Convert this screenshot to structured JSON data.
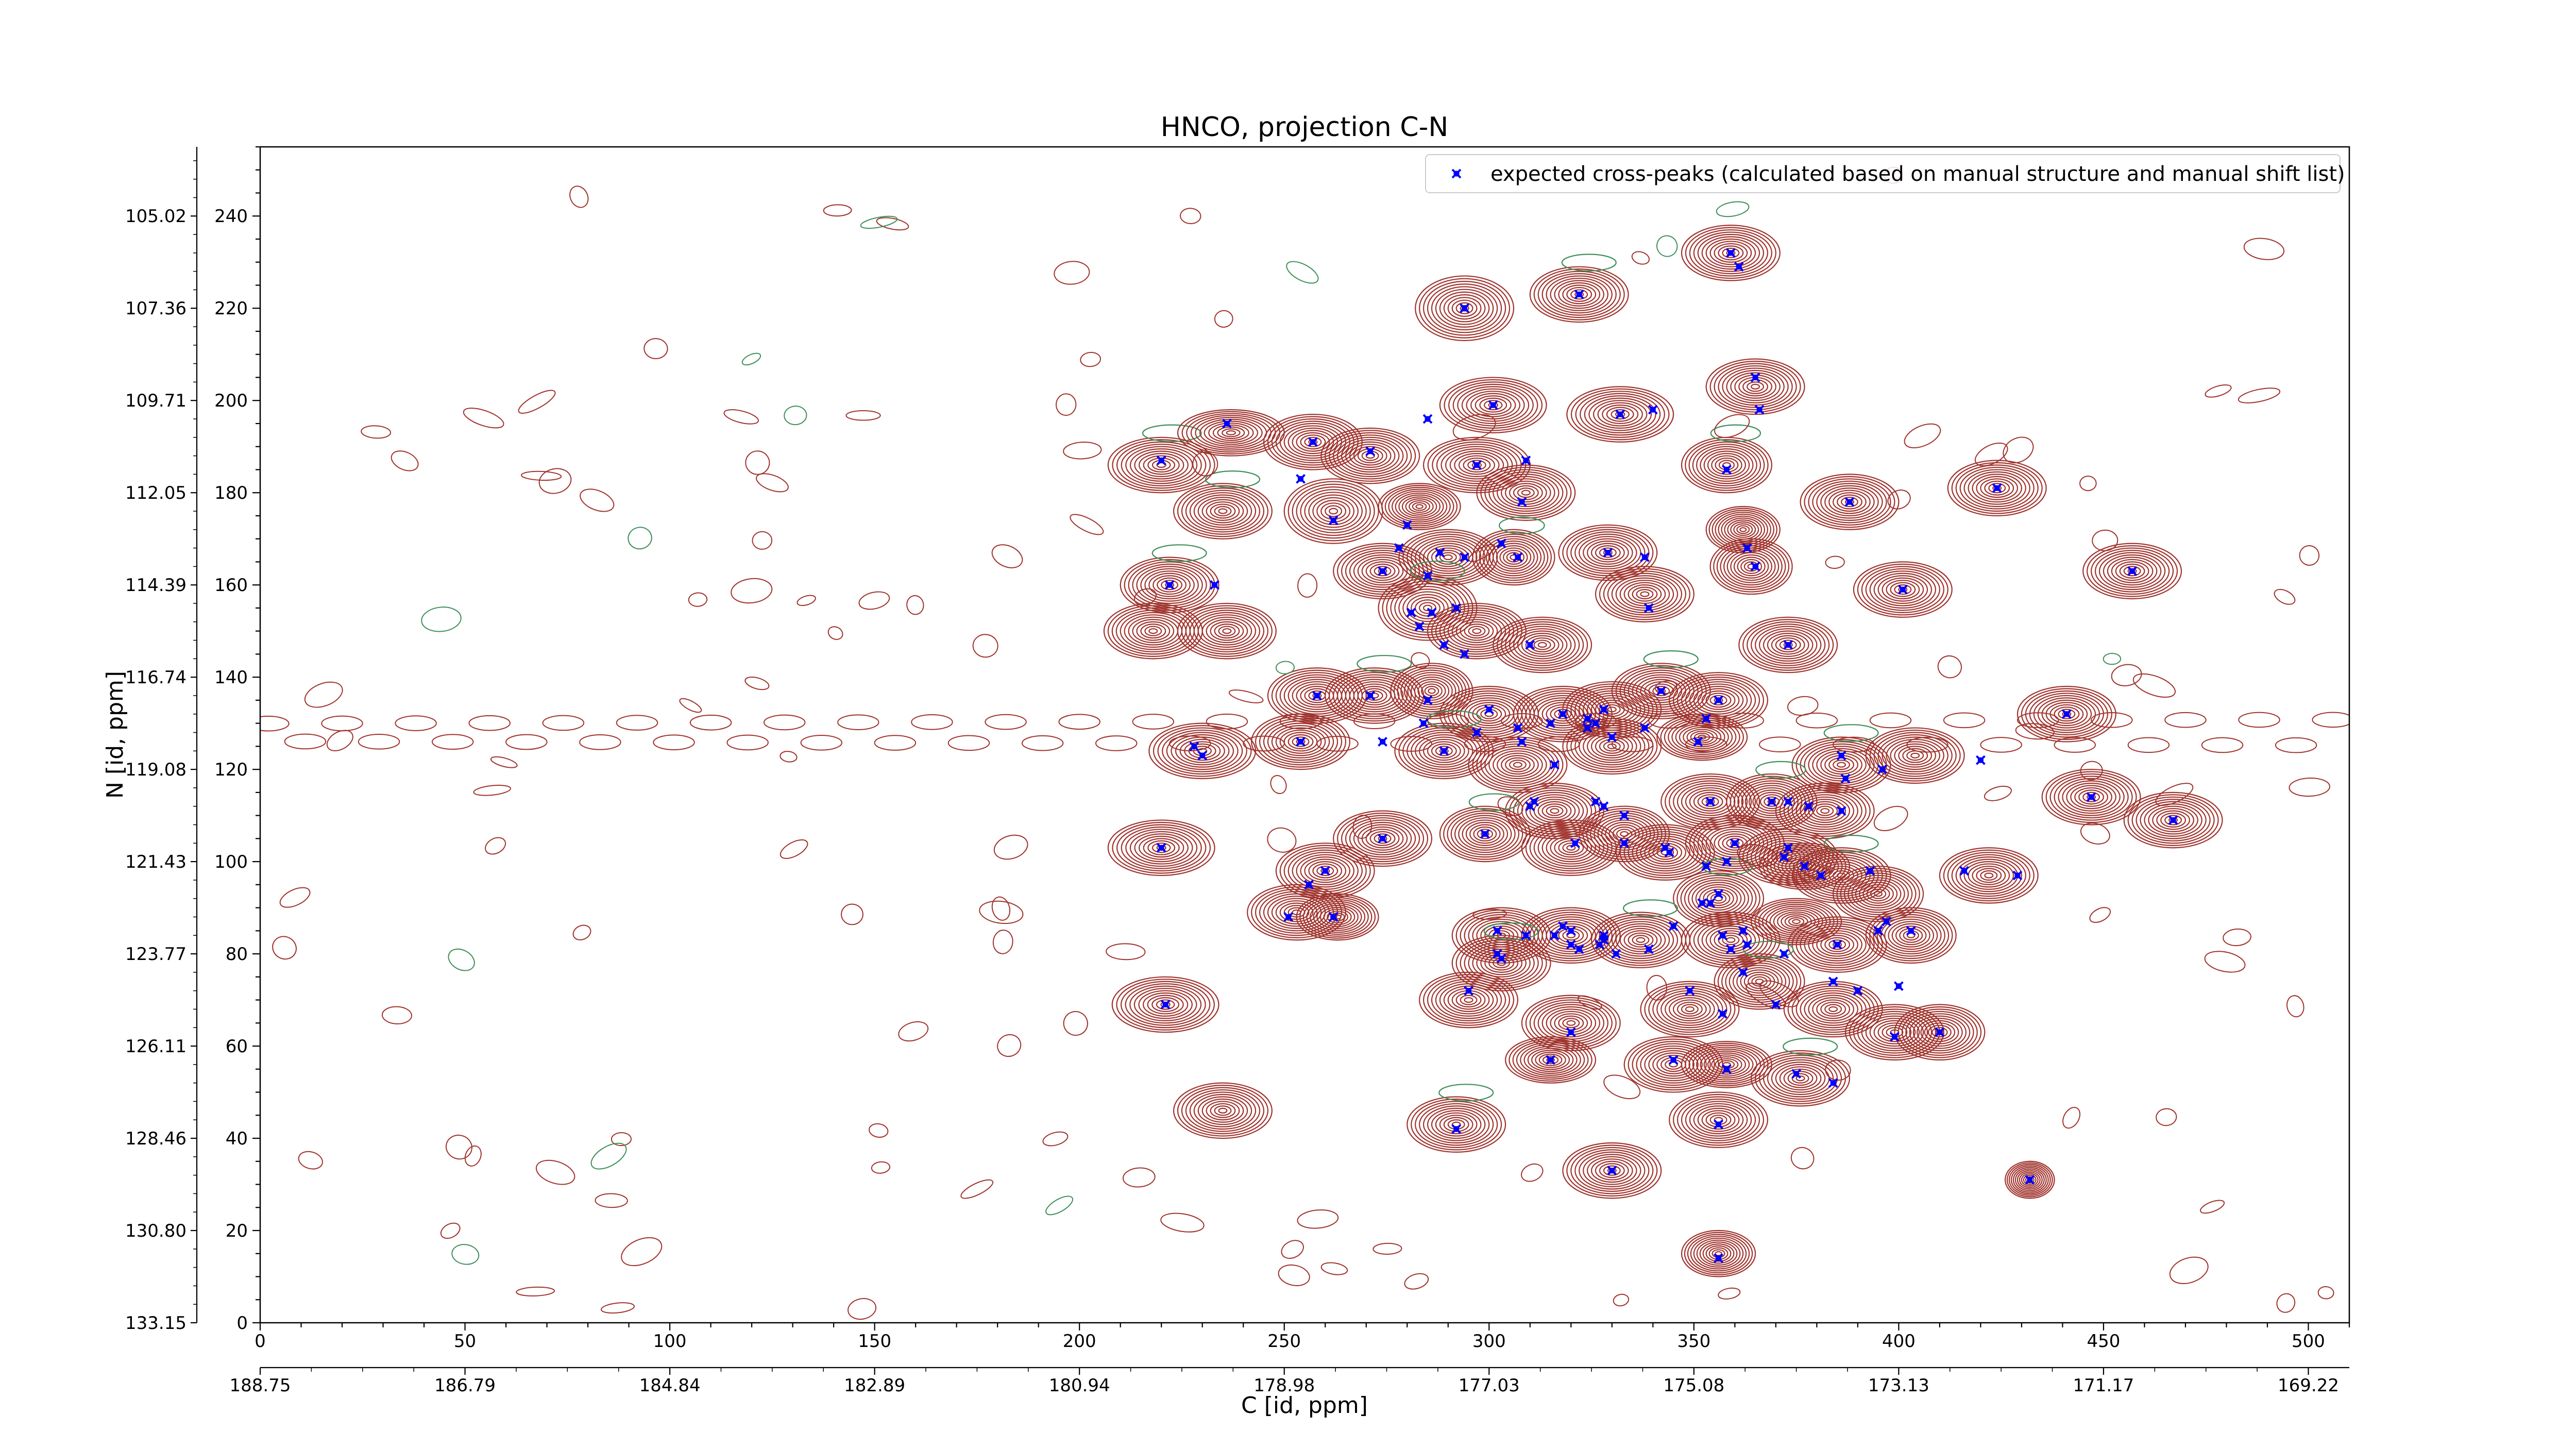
{
  "chart_data": {
    "type": "scatter",
    "title": "HNCO, projection C-N",
    "xlabel": "C [id, ppm]",
    "ylabel": "N [id, ppm]",
    "xlim": [
      0,
      510
    ],
    "ylim": [
      0,
      255
    ],
    "x_ticks": [
      0,
      50,
      100,
      150,
      200,
      250,
      300,
      350,
      400,
      450,
      500
    ],
    "y_ticks": [
      0,
      20,
      40,
      60,
      80,
      100,
      120,
      140,
      160,
      180,
      200,
      220,
      240
    ],
    "x_ppm_tick_labels": [
      "188.75",
      "186.79",
      "184.84",
      "182.89",
      "180.94",
      "178.98",
      "177.03",
      "175.08",
      "173.13",
      "171.17",
      "169.22"
    ],
    "y_ppm_tick_labels": [
      "133.15",
      "130.80",
      "128.46",
      "126.11",
      "123.77",
      "121.43",
      "119.08",
      "116.74",
      "114.39",
      "112.05",
      "109.71",
      "107.36",
      "105.02"
    ],
    "legend_position": "upper-right",
    "colors": {
      "marker": "#0000ff",
      "positive_contour": "#a0332d",
      "negative_contour": "#3f8f5a"
    },
    "series": [
      {
        "name": "expected cross-peaks (calculated based on manual structure and manual shift list)",
        "points": [
          [
            359,
            232
          ],
          [
            361,
            229
          ],
          [
            322,
            223
          ],
          [
            294,
            220
          ],
          [
            301,
            199
          ],
          [
            332,
            197
          ],
          [
            340,
            198
          ],
          [
            365,
            205
          ],
          [
            366,
            198
          ],
          [
            236,
            195
          ],
          [
            285,
            196
          ],
          [
            220,
            187
          ],
          [
            257,
            191
          ],
          [
            271,
            189
          ],
          [
            254,
            183
          ],
          [
            297,
            186
          ],
          [
            309,
            187
          ],
          [
            358,
            185
          ],
          [
            388,
            178
          ],
          [
            424,
            181
          ],
          [
            262,
            174
          ],
          [
            280,
            173
          ],
          [
            308,
            178
          ],
          [
            278,
            168
          ],
          [
            288,
            167
          ],
          [
            294,
            166
          ],
          [
            303,
            169
          ],
          [
            307,
            166
          ],
          [
            274,
            163
          ],
          [
            285,
            162
          ],
          [
            329,
            167
          ],
          [
            338,
            166
          ],
          [
            363,
            168
          ],
          [
            365,
            164
          ],
          [
            222,
            160
          ],
          [
            233,
            160
          ],
          [
            401,
            159
          ],
          [
            457,
            163
          ],
          [
            292,
            155
          ],
          [
            283,
            151
          ],
          [
            286,
            154
          ],
          [
            281,
            154
          ],
          [
            289,
            147
          ],
          [
            294,
            145
          ],
          [
            310,
            147
          ],
          [
            339,
            155
          ],
          [
            373,
            147
          ],
          [
            271,
            136
          ],
          [
            258,
            136
          ],
          [
            285,
            135
          ],
          [
            300,
            133
          ],
          [
            318,
            132
          ],
          [
            324,
            131
          ],
          [
            324,
            129
          ],
          [
            326,
            130
          ],
          [
            328,
            133
          ],
          [
            342,
            137
          ],
          [
            356,
            135
          ],
          [
            315,
            130
          ],
          [
            284,
            130
          ],
          [
            274,
            126
          ],
          [
            289,
            124
          ],
          [
            297,
            128
          ],
          [
            307,
            129
          ],
          [
            308,
            126
          ],
          [
            330,
            127
          ],
          [
            338,
            129
          ],
          [
            353,
            131
          ],
          [
            351,
            126
          ],
          [
            441,
            132
          ],
          [
            228,
            125
          ],
          [
            230,
            123
          ],
          [
            254,
            126
          ],
          [
            316,
            121
          ],
          [
            386,
            123
          ],
          [
            396,
            120
          ],
          [
            387,
            118
          ],
          [
            420,
            122
          ],
          [
            311,
            113
          ],
          [
            310,
            112
          ],
          [
            326,
            113
          ],
          [
            328,
            112
          ],
          [
            354,
            113
          ],
          [
            369,
            113
          ],
          [
            373,
            113
          ],
          [
            378,
            112
          ],
          [
            386,
            111
          ],
          [
            333,
            110
          ],
          [
            360,
            104
          ],
          [
            373,
            103
          ],
          [
            333,
            104
          ],
          [
            343,
            103
          ],
          [
            353,
            99
          ],
          [
            372,
            101
          ],
          [
            358,
            100
          ],
          [
            381,
            97
          ],
          [
            447,
            114
          ],
          [
            467,
            109
          ],
          [
            220,
            103
          ],
          [
            274,
            105
          ],
          [
            299,
            106
          ],
          [
            321,
            104
          ],
          [
            344,
            102
          ],
          [
            356,
            93
          ],
          [
            377,
            99
          ],
          [
            393,
            98
          ],
          [
            260,
            98
          ],
          [
            256,
            95
          ],
          [
            416,
            98
          ],
          [
            429,
            97
          ],
          [
            251,
            88
          ],
          [
            262,
            88
          ],
          [
            352,
            91
          ],
          [
            354,
            91
          ],
          [
            345,
            86
          ],
          [
            302,
            85
          ],
          [
            309,
            84
          ],
          [
            316,
            84
          ],
          [
            318,
            86
          ],
          [
            320,
            82
          ],
          [
            327,
            82
          ],
          [
            320,
            85
          ],
          [
            328,
            84
          ],
          [
            322,
            81
          ],
          [
            328,
            83
          ],
          [
            339,
            81
          ],
          [
            357,
            84
          ],
          [
            362,
            85
          ],
          [
            363,
            82
          ],
          [
            372,
            80
          ],
          [
            359,
            81
          ],
          [
            385,
            82
          ],
          [
            395,
            85
          ],
          [
            397,
            87
          ],
          [
            403,
            85
          ],
          [
            303,
            79
          ],
          [
            302,
            80
          ],
          [
            295,
            72
          ],
          [
            349,
            72
          ],
          [
            362,
            76
          ],
          [
            384,
            74
          ],
          [
            331,
            80
          ],
          [
            357,
            67
          ],
          [
            370,
            69
          ],
          [
            390,
            72
          ],
          [
            400,
            73
          ],
          [
            399,
            62
          ],
          [
            320,
            63
          ],
          [
            315,
            57
          ],
          [
            345,
            57
          ],
          [
            358,
            55
          ],
          [
            375,
            54
          ],
          [
            384,
            52
          ],
          [
            356,
            43
          ],
          [
            221,
            69
          ],
          [
            410,
            63
          ],
          [
            292,
            42
          ],
          [
            330,
            33
          ],
          [
            432,
            31
          ],
          [
            356,
            14
          ]
        ]
      }
    ],
    "contour_peaks": [
      {
        "x": 220,
        "y": 186,
        "rx": 13,
        "ry": 6
      },
      {
        "x": 237,
        "y": 193,
        "rx": 13,
        "ry": 5
      },
      {
        "x": 257,
        "y": 191,
        "rx": 12,
        "ry": 6
      },
      {
        "x": 271,
        "y": 188,
        "rx": 12,
        "ry": 6
      },
      {
        "x": 294,
        "y": 220,
        "rx": 12,
        "ry": 7
      },
      {
        "x": 322,
        "y": 223,
        "rx": 12,
        "ry": 6
      },
      {
        "x": 359,
        "y": 232,
        "rx": 12,
        "ry": 6
      },
      {
        "x": 301,
        "y": 199,
        "rx": 13,
        "ry": 6
      },
      {
        "x": 332,
        "y": 197,
        "rx": 13,
        "ry": 6
      },
      {
        "x": 365,
        "y": 203,
        "rx": 12,
        "ry": 6
      },
      {
        "x": 358,
        "y": 186,
        "rx": 11,
        "ry": 6
      },
      {
        "x": 297,
        "y": 186,
        "rx": 13,
        "ry": 6
      },
      {
        "x": 309,
        "y": 180,
        "rx": 12,
        "ry": 6
      },
      {
        "x": 388,
        "y": 178,
        "rx": 12,
        "ry": 6
      },
      {
        "x": 424,
        "y": 181,
        "rx": 12,
        "ry": 6
      },
      {
        "x": 235,
        "y": 176,
        "rx": 12,
        "ry": 6
      },
      {
        "x": 262,
        "y": 176,
        "rx": 12,
        "ry": 7
      },
      {
        "x": 283,
        "y": 177,
        "rx": 10,
        "ry": 5
      },
      {
        "x": 274,
        "y": 163,
        "rx": 12,
        "ry": 6
      },
      {
        "x": 290,
        "y": 166,
        "rx": 12,
        "ry": 6
      },
      {
        "x": 306,
        "y": 166,
        "rx": 10,
        "ry": 6
      },
      {
        "x": 329,
        "y": 167,
        "rx": 12,
        "ry": 6
      },
      {
        "x": 338,
        "y": 158,
        "rx": 12,
        "ry": 6
      },
      {
        "x": 364,
        "y": 164,
        "rx": 10,
        "ry": 6
      },
      {
        "x": 362,
        "y": 172,
        "rx": 9,
        "ry": 5
      },
      {
        "x": 222,
        "y": 160,
        "rx": 12,
        "ry": 6
      },
      {
        "x": 236,
        "y": 150,
        "rx": 12,
        "ry": 6
      },
      {
        "x": 218,
        "y": 150,
        "rx": 12,
        "ry": 6
      },
      {
        "x": 401,
        "y": 159,
        "rx": 12,
        "ry": 6
      },
      {
        "x": 457,
        "y": 163,
        "rx": 12,
        "ry": 6
      },
      {
        "x": 285,
        "y": 155,
        "rx": 12,
        "ry": 7
      },
      {
        "x": 297,
        "y": 150,
        "rx": 12,
        "ry": 6
      },
      {
        "x": 313,
        "y": 147,
        "rx": 12,
        "ry": 6
      },
      {
        "x": 373,
        "y": 147,
        "rx": 12,
        "ry": 6
      },
      {
        "x": 258,
        "y": 136,
        "rx": 12,
        "ry": 6
      },
      {
        "x": 272,
        "y": 136,
        "rx": 12,
        "ry": 6
      },
      {
        "x": 286,
        "y": 137,
        "rx": 10,
        "ry": 6
      },
      {
        "x": 300,
        "y": 132,
        "rx": 12,
        "ry": 6
      },
      {
        "x": 318,
        "y": 132,
        "rx": 12,
        "ry": 6
      },
      {
        "x": 330,
        "y": 133,
        "rx": 12,
        "ry": 6
      },
      {
        "x": 342,
        "y": 137,
        "rx": 12,
        "ry": 6
      },
      {
        "x": 356,
        "y": 135,
        "rx": 12,
        "ry": 6
      },
      {
        "x": 441,
        "y": 132,
        "rx": 12,
        "ry": 6
      },
      {
        "x": 230,
        "y": 124,
        "rx": 13,
        "ry": 6
      },
      {
        "x": 254,
        "y": 126,
        "rx": 12,
        "ry": 6
      },
      {
        "x": 289,
        "y": 124,
        "rx": 12,
        "ry": 6
      },
      {
        "x": 307,
        "y": 121,
        "rx": 12,
        "ry": 6
      },
      {
        "x": 330,
        "y": 125,
        "rx": 12,
        "ry": 6
      },
      {
        "x": 352,
        "y": 127,
        "rx": 11,
        "ry": 5
      },
      {
        "x": 316,
        "y": 111,
        "rx": 12,
        "ry": 6
      },
      {
        "x": 386,
        "y": 121,
        "rx": 12,
        "ry": 6
      },
      {
        "x": 404,
        "y": 123,
        "rx": 12,
        "ry": 6
      },
      {
        "x": 447,
        "y": 114,
        "rx": 12,
        "ry": 6
      },
      {
        "x": 467,
        "y": 109,
        "rx": 12,
        "ry": 6
      },
      {
        "x": 354,
        "y": 113,
        "rx": 12,
        "ry": 6
      },
      {
        "x": 369,
        "y": 113,
        "rx": 11,
        "ry": 6
      },
      {
        "x": 382,
        "y": 111,
        "rx": 12,
        "ry": 6
      },
      {
        "x": 333,
        "y": 106,
        "rx": 11,
        "ry": 6
      },
      {
        "x": 220,
        "y": 103,
        "rx": 13,
        "ry": 6
      },
      {
        "x": 274,
        "y": 105,
        "rx": 12,
        "ry": 6
      },
      {
        "x": 299,
        "y": 106,
        "rx": 11,
        "ry": 6
      },
      {
        "x": 320,
        "y": 103,
        "rx": 12,
        "ry": 6
      },
      {
        "x": 343,
        "y": 102,
        "rx": 12,
        "ry": 6
      },
      {
        "x": 360,
        "y": 104,
        "rx": 12,
        "ry": 6
      },
      {
        "x": 373,
        "y": 101,
        "rx": 12,
        "ry": 6
      },
      {
        "x": 386,
        "y": 97,
        "rx": 12,
        "ry": 6
      },
      {
        "x": 422,
        "y": 97,
        "rx": 12,
        "ry": 6
      },
      {
        "x": 260,
        "y": 98,
        "rx": 12,
        "ry": 6
      },
      {
        "x": 253,
        "y": 89,
        "rx": 12,
        "ry": 6
      },
      {
        "x": 263,
        "y": 88,
        "rx": 10,
        "ry": 5
      },
      {
        "x": 356,
        "y": 92,
        "rx": 11,
        "ry": 6
      },
      {
        "x": 377,
        "y": 99,
        "rx": 11,
        "ry": 5
      },
      {
        "x": 395,
        "y": 93,
        "rx": 11,
        "ry": 6
      },
      {
        "x": 303,
        "y": 84,
        "rx": 12,
        "ry": 6
      },
      {
        "x": 320,
        "y": 84,
        "rx": 12,
        "ry": 6
      },
      {
        "x": 337,
        "y": 83,
        "rx": 12,
        "ry": 6
      },
      {
        "x": 359,
        "y": 83,
        "rx": 12,
        "ry": 6
      },
      {
        "x": 375,
        "y": 87,
        "rx": 11,
        "ry": 5
      },
      {
        "x": 385,
        "y": 82,
        "rx": 12,
        "ry": 6
      },
      {
        "x": 403,
        "y": 84,
        "rx": 11,
        "ry": 6
      },
      {
        "x": 303,
        "y": 78,
        "rx": 12,
        "ry": 6
      },
      {
        "x": 295,
        "y": 70,
        "rx": 12,
        "ry": 6
      },
      {
        "x": 320,
        "y": 65,
        "rx": 12,
        "ry": 6
      },
      {
        "x": 315,
        "y": 57,
        "rx": 11,
        "ry": 5
      },
      {
        "x": 349,
        "y": 68,
        "rx": 12,
        "ry": 6
      },
      {
        "x": 366,
        "y": 74,
        "rx": 11,
        "ry": 6
      },
      {
        "x": 384,
        "y": 68,
        "rx": 12,
        "ry": 6
      },
      {
        "x": 399,
        "y": 63,
        "rx": 12,
        "ry": 6
      },
      {
        "x": 345,
        "y": 56,
        "rx": 12,
        "ry": 6
      },
      {
        "x": 358,
        "y": 56,
        "rx": 11,
        "ry": 5
      },
      {
        "x": 376,
        "y": 53,
        "rx": 12,
        "ry": 6
      },
      {
        "x": 356,
        "y": 44,
        "rx": 12,
        "ry": 6
      },
      {
        "x": 221,
        "y": 69,
        "rx": 13,
        "ry": 6
      },
      {
        "x": 410,
        "y": 63,
        "rx": 11,
        "ry": 6
      },
      {
        "x": 235,
        "y": 46,
        "rx": 12,
        "ry": 6
      },
      {
        "x": 292,
        "y": 43,
        "rx": 12,
        "ry": 6
      },
      {
        "x": 330,
        "y": 33,
        "rx": 12,
        "ry": 6
      },
      {
        "x": 432,
        "y": 31,
        "rx": 6,
        "ry": 4
      },
      {
        "x": 356,
        "y": 15,
        "rx": 9,
        "ry": 5
      }
    ]
  }
}
